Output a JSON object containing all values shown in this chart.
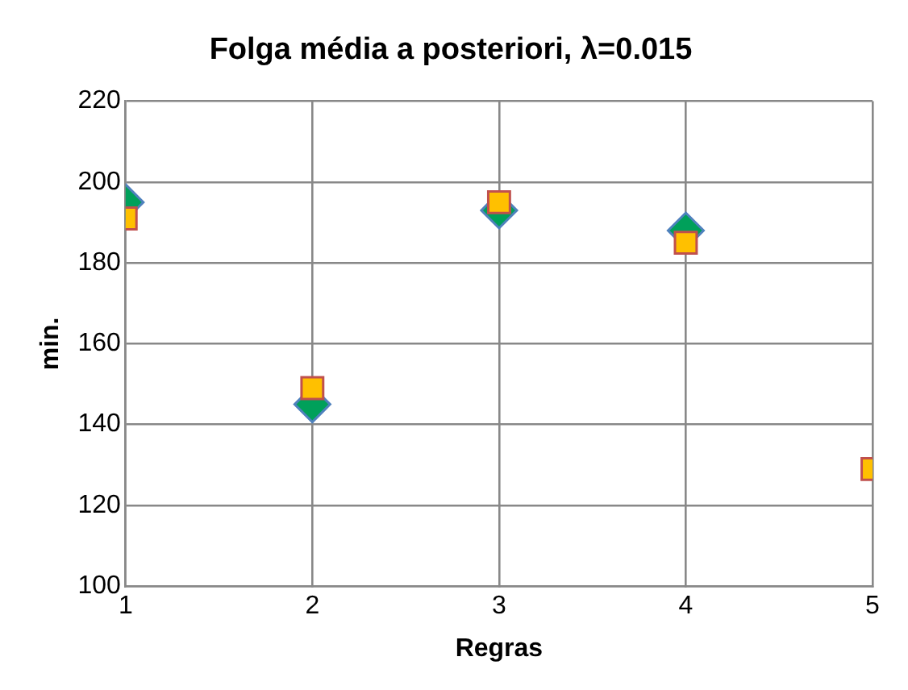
{
  "chart_data": {
    "type": "scatter",
    "title": "Folga média a posteriori, λ=0.015",
    "xlabel": "Regras",
    "ylabel": "min.",
    "x": [
      1,
      2,
      3,
      4,
      5
    ],
    "xlim": [
      1,
      5
    ],
    "xticks": [
      1,
      2,
      3,
      4,
      5
    ],
    "ylim": [
      100,
      220
    ],
    "yticks": [
      100,
      120,
      140,
      160,
      180,
      200,
      220
    ],
    "grid": true,
    "series": [
      {
        "color": "#00a05a",
        "marker": "diamond",
        "values": [
          195,
          145,
          193,
          188,
          null
        ]
      },
      {
        "color": "#ffc000",
        "marker": "square",
        "values": [
          191,
          149,
          195,
          185,
          129
        ]
      }
    ]
  }
}
